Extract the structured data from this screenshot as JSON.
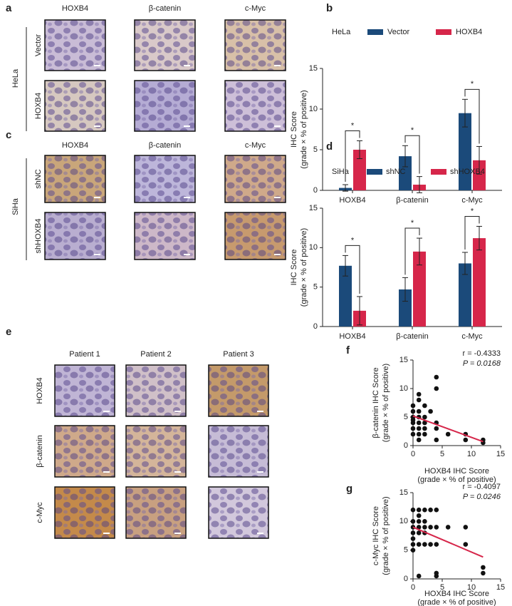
{
  "figure": {
    "panel_labels": [
      "a",
      "b",
      "c",
      "d",
      "e",
      "f",
      "g"
    ],
    "panel_a": {
      "columns": [
        "HOXB4",
        "β-catenin",
        "c-Myc"
      ],
      "rows": [
        "Vector",
        "HOXB4"
      ],
      "group": "HeLa"
    },
    "panel_c": {
      "columns": [
        "HOXB4",
        "β-catenin",
        "c-Myc"
      ],
      "rows": [
        "shNC",
        "shHOXB4"
      ],
      "group": "SiHa"
    },
    "panel_e": {
      "columns": [
        "Patient 1",
        "Patient 2",
        "Patient 3"
      ],
      "rows": [
        "HOXB4",
        "β-catenin",
        "c-Myc"
      ]
    }
  },
  "chart_data": [
    {
      "type": "bar",
      "legend_title": "HeLa",
      "categories": [
        "HOXB4",
        "β-catenin",
        "c-Myc"
      ],
      "series": [
        {
          "name": "Vector",
          "color": "#1b4a7a",
          "values": [
            0.3,
            4.2,
            9.5
          ],
          "errors": [
            0.4,
            1.3,
            1.7
          ]
        },
        {
          "name": "HOXB4",
          "color": "#d6264a",
          "values": [
            5.0,
            0.7,
            3.7
          ],
          "errors": [
            1.1,
            1.0,
            1.7
          ]
        }
      ],
      "significance": [
        "*",
        "*",
        "*"
      ],
      "ylabel": [
        "IHC Score",
        "(grade × % of positive)"
      ],
      "ylim": [
        0,
        15
      ],
      "yticks": [
        0,
        5,
        10,
        15
      ]
    },
    {
      "type": "bar",
      "legend_title": "SiHa",
      "categories": [
        "HOXB4",
        "β-catenin",
        "c-Myc"
      ],
      "series": [
        {
          "name": "shNC",
          "color": "#1b4a7a",
          "values": [
            7.7,
            4.7,
            8.0
          ],
          "errors": [
            1.3,
            1.5,
            1.4
          ]
        },
        {
          "name": "shHOXB4",
          "color": "#d6264a",
          "values": [
            2.0,
            9.5,
            11.2
          ],
          "errors": [
            1.8,
            1.7,
            1.5
          ]
        }
      ],
      "significance": [
        "*",
        "*",
        "*"
      ],
      "ylabel": [
        "IHC Score",
        "(grade × % of positive)"
      ],
      "ylim": [
        0,
        15
      ],
      "yticks": [
        0,
        5,
        10,
        15
      ]
    },
    {
      "type": "scatter",
      "x": [
        0,
        0,
        0,
        0,
        0,
        0,
        0,
        1,
        1,
        1,
        1,
        1,
        1,
        1,
        1,
        2,
        2,
        2,
        2,
        2,
        3,
        4,
        4,
        4,
        4,
        4,
        6,
        9,
        9,
        12,
        12
      ],
      "y": [
        2,
        3,
        4,
        5,
        6,
        7,
        4.5,
        1,
        2,
        3,
        4,
        6,
        8,
        9,
        5,
        2,
        3,
        4,
        5,
        7,
        6,
        12,
        10,
        4,
        3,
        1,
        2,
        2,
        1,
        1,
        0.5
      ],
      "color": "#111111",
      "fit": {
        "x": [
          0,
          12
        ],
        "y": [
          5.2,
          0.7
        ],
        "color": "#d6264a"
      },
      "annotations": [
        "r = -0.4333",
        "P = 0.0168"
      ],
      "xlabel": [
        "HOXB4 IHC Score",
        "(grade × % of positive)"
      ],
      "ylabel": [
        "β-catenin IHC Score",
        "(grade × % of positive)"
      ],
      "xlim": [
        0,
        15
      ],
      "xticks": [
        0,
        5,
        10,
        15
      ],
      "ylim": [
        0,
        15
      ],
      "yticks": [
        0,
        5,
        10,
        15
      ]
    },
    {
      "type": "scatter",
      "x": [
        0,
        0,
        0,
        0,
        0,
        0,
        0,
        1,
        1,
        1,
        1,
        1,
        1,
        1,
        2,
        2,
        2,
        2,
        2,
        3,
        3,
        3,
        4,
        4,
        4,
        4,
        4,
        6,
        9,
        9,
        12,
        12
      ],
      "y": [
        12,
        10,
        9,
        8,
        6,
        7,
        5,
        12,
        11,
        10,
        9,
        8,
        6,
        0.5,
        12,
        10,
        9,
        8,
        6,
        12,
        9,
        6,
        12,
        9,
        6,
        1,
        0.5,
        9,
        9,
        6,
        2,
        1
      ],
      "color": "#111111",
      "fit": {
        "x": [
          0,
          12
        ],
        "y": [
          9.0,
          3.8
        ],
        "color": "#d6264a"
      },
      "annotations": [
        "r = -0.4097",
        "P = 0.0246"
      ],
      "xlabel": [
        "HOXB4 IHC Score",
        "(grade × % of positive)"
      ],
      "ylabel": [
        "c-Myc IHC Score",
        "(grade × % of positive)"
      ],
      "xlim": [
        0,
        15
      ],
      "xticks": [
        0,
        5,
        10,
        15
      ],
      "ylim": [
        0,
        15
      ],
      "yticks": [
        0,
        5,
        10,
        15
      ]
    }
  ]
}
